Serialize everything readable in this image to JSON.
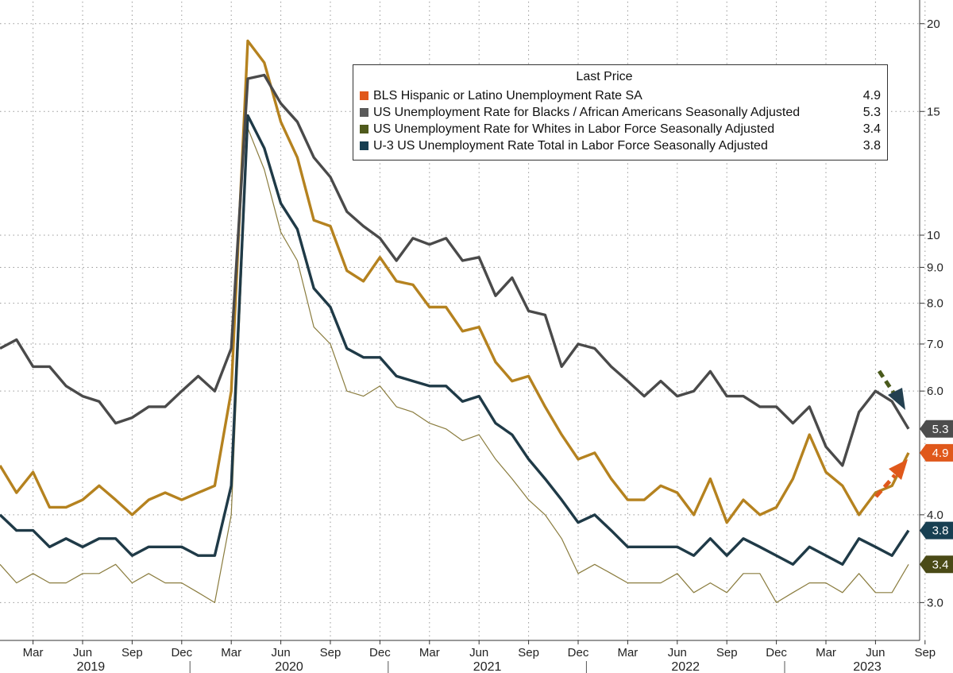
{
  "chart_data": {
    "type": "line",
    "y_scale": "log",
    "ylim": [
      2.65,
      21.5
    ],
    "y_ticks": [
      {
        "value": 3.0,
        "label": "3.0"
      },
      {
        "value": 4.0,
        "label": "4.0"
      },
      {
        "value": 6.0,
        "label": "6.0"
      },
      {
        "value": 7.0,
        "label": "7.0"
      },
      {
        "value": 8.0,
        "label": "8.0"
      },
      {
        "value": 9.0,
        "label": "9.0"
      },
      {
        "value": 10,
        "label": "10"
      },
      {
        "value": 15,
        "label": "15"
      },
      {
        "value": 20,
        "label": "20"
      }
    ],
    "start": "2019-01",
    "x_ticks": [
      {
        "label": "Mar",
        "index": 2
      },
      {
        "label": "Jun",
        "index": 5
      },
      {
        "label": "Sep",
        "index": 8
      },
      {
        "label": "Dec",
        "index": 11
      },
      {
        "label": "Mar",
        "index": 14
      },
      {
        "label": "Jun",
        "index": 17
      },
      {
        "label": "Sep",
        "index": 20
      },
      {
        "label": "Dec",
        "index": 23
      },
      {
        "label": "Mar",
        "index": 26
      },
      {
        "label": "Jun",
        "index": 29
      },
      {
        "label": "Sep",
        "index": 32
      },
      {
        "label": "Dec",
        "index": 35
      },
      {
        "label": "Mar",
        "index": 38
      },
      {
        "label": "Jun",
        "index": 41
      },
      {
        "label": "Sep",
        "index": 44
      },
      {
        "label": "Dec",
        "index": 47
      },
      {
        "label": "Mar",
        "index": 50
      },
      {
        "label": "Jun",
        "index": 53
      },
      {
        "label": "Sep",
        "index": 56
      }
    ],
    "years": [
      {
        "label": "2019",
        "index": 5.5
      },
      {
        "label": "2020",
        "index": 17.5
      },
      {
        "label": "2021",
        "index": 29.5
      },
      {
        "label": "2022",
        "index": 41.5
      },
      {
        "label": "2023",
        "index": 52.5
      }
    ],
    "year_separators": [
      11.5,
      23.5,
      35.5,
      47.5
    ],
    "legend_title": "Last Price",
    "series": [
      {
        "name": "BLS Hispanic or Latino Unemployment Rate SA",
        "last": "4.9",
        "color": "#b5821f",
        "swatch": "#e0581b",
        "badge_bg": "#e0581b",
        "badge_fg": "#ffffff",
        "width": 3.4,
        "values": [
          4.7,
          4.3,
          4.6,
          4.1,
          4.1,
          4.2,
          4.4,
          4.2,
          4.0,
          4.2,
          4.3,
          4.2,
          4.3,
          4.4,
          6.0,
          18.9,
          17.6,
          14.5,
          12.9,
          10.5,
          10.3,
          8.9,
          8.6,
          9.3,
          8.6,
          8.5,
          7.9,
          7.9,
          7.3,
          7.4,
          6.6,
          6.2,
          6.3,
          5.7,
          5.2,
          4.8,
          4.9,
          4.5,
          4.2,
          4.2,
          4.4,
          4.3,
          4.0,
          4.5,
          3.9,
          4.2,
          4.0,
          4.1,
          4.5,
          5.2,
          4.6,
          4.4,
          4.0,
          4.3,
          4.4,
          4.9
        ]
      },
      {
        "name": "US Unemployment Rate for Blacks / African Americans Seasonally Adjusted",
        "last": "5.3",
        "color": "#4a4a4a",
        "swatch": "#5a5a5a",
        "badge_bg": "#4d4d4d",
        "badge_fg": "#ffffff",
        "width": 3.4,
        "values": [
          6.9,
          7.1,
          6.5,
          6.5,
          6.1,
          5.9,
          5.8,
          5.4,
          5.5,
          5.7,
          5.7,
          6.0,
          6.3,
          6.0,
          6.9,
          16.7,
          16.9,
          15.4,
          14.5,
          12.9,
          12.1,
          10.8,
          10.3,
          9.9,
          9.2,
          9.9,
          9.7,
          9.9,
          9.2,
          9.3,
          8.2,
          8.7,
          7.8,
          7.7,
          6.5,
          7.0,
          6.9,
          6.5,
          6.2,
          5.9,
          6.2,
          5.9,
          6.0,
          6.4,
          5.9,
          5.9,
          5.7,
          5.7,
          5.4,
          5.7,
          5.0,
          4.7,
          5.6,
          6.0,
          5.8,
          5.3
        ]
      },
      {
        "name": "US Unemployment Rate for Whites in Labor Force Seasonally Adjusted",
        "last": "3.4",
        "color": "#8a7c3e",
        "swatch": "#4f5a1c",
        "badge_bg": "#4a4a16",
        "badge_fg": "#ffffff",
        "width": 1.2,
        "values": [
          3.4,
          3.2,
          3.3,
          3.2,
          3.2,
          3.3,
          3.3,
          3.4,
          3.2,
          3.3,
          3.2,
          3.2,
          3.1,
          3.0,
          4.0,
          14.2,
          12.4,
          10.1,
          9.2,
          7.4,
          7.0,
          6.0,
          5.9,
          6.1,
          5.7,
          5.6,
          5.4,
          5.3,
          5.1,
          5.2,
          4.8,
          4.5,
          4.2,
          4.0,
          3.7,
          3.3,
          3.4,
          3.3,
          3.2,
          3.2,
          3.2,
          3.3,
          3.1,
          3.2,
          3.1,
          3.3,
          3.3,
          3.0,
          3.1,
          3.2,
          3.2,
          3.1,
          3.3,
          3.1,
          3.1,
          3.4
        ]
      },
      {
        "name": "U-3 US Unemployment Rate Total in Labor Force Seasonally Adjusted",
        "last": "3.8",
        "color": "#1f3a47",
        "swatch": "#173f52",
        "badge_bg": "#173f52",
        "badge_fg": "#ffffff",
        "width": 3.4,
        "values": [
          4.0,
          3.8,
          3.8,
          3.6,
          3.7,
          3.6,
          3.7,
          3.7,
          3.5,
          3.6,
          3.6,
          3.6,
          3.5,
          3.5,
          4.4,
          14.8,
          13.3,
          11.1,
          10.2,
          8.4,
          7.9,
          6.9,
          6.7,
          6.7,
          6.3,
          6.2,
          6.1,
          6.1,
          5.8,
          5.9,
          5.4,
          5.2,
          4.8,
          4.5,
          4.2,
          3.9,
          4.0,
          3.8,
          3.6,
          3.6,
          3.6,
          3.6,
          3.5,
          3.7,
          3.5,
          3.7,
          3.6,
          3.5,
          3.4,
          3.6,
          3.5,
          3.4,
          3.7,
          3.6,
          3.5,
          3.8
        ]
      }
    ]
  }
}
